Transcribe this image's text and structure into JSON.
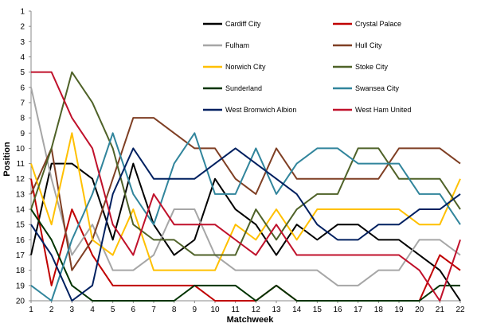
{
  "chart_data": {
    "type": "line",
    "title": "",
    "xlabel": "Matchweek",
    "ylabel": "Position",
    "x": [
      1,
      2,
      3,
      4,
      5,
      6,
      7,
      8,
      9,
      10,
      11,
      12,
      13,
      14,
      15,
      16,
      17,
      18,
      19,
      20,
      21,
      22
    ],
    "xlim": [
      1,
      22
    ],
    "ylim": [
      1,
      20
    ],
    "y_reversed": true,
    "y_ticks": [
      1,
      2,
      3,
      4,
      5,
      6,
      7,
      8,
      9,
      10,
      11,
      12,
      13,
      14,
      15,
      16,
      17,
      18,
      19,
      20
    ],
    "grid": false,
    "legend_position": "top-right",
    "series": [
      {
        "name": "Cardiff City",
        "color": "#000000",
        "values": [
          17,
          11,
          11,
          12,
          16,
          11,
          15,
          17,
          16,
          12,
          14,
          15,
          17,
          15,
          16,
          15,
          15,
          16,
          16,
          17,
          18,
          20
        ]
      },
      {
        "name": "Crystal Palace",
        "color": "#c00000",
        "values": [
          12,
          19,
          14,
          17,
          19,
          19,
          19,
          19,
          19,
          20,
          20,
          20,
          19,
          20,
          20,
          20,
          20,
          20,
          20,
          20,
          17,
          18
        ]
      },
      {
        "name": "Fulham",
        "color": "#a6a6a6",
        "values": [
          6,
          12,
          17,
          15,
          18,
          18,
          17,
          14,
          14,
          17,
          18,
          18,
          18,
          18,
          18,
          19,
          19,
          18,
          18,
          16,
          16,
          17
        ]
      },
      {
        "name": "Hull City",
        "color": "#7f3f24",
        "values": [
          13,
          10,
          18,
          16,
          12,
          8,
          8,
          9,
          10,
          10,
          12,
          13,
          10,
          12,
          12,
          12,
          12,
          12,
          10,
          10,
          10,
          11
        ]
      },
      {
        "name": "Norwich City",
        "color": "#ffc000",
        "values": [
          11,
          15,
          9,
          16,
          17,
          14,
          18,
          18,
          18,
          18,
          15,
          16,
          14,
          16,
          14,
          14,
          14,
          14,
          14,
          15,
          15,
          12
        ]
      },
      {
        "name": "Stoke City",
        "color": "#4f6228",
        "values": [
          14,
          10,
          5,
          7,
          10,
          15,
          16,
          16,
          17,
          17,
          17,
          14,
          16,
          14,
          13,
          13,
          10,
          10,
          12,
          12,
          12,
          14
        ]
      },
      {
        "name": "Sunderland",
        "color": "#003300",
        "values": [
          14,
          16,
          19,
          20,
          20,
          20,
          20,
          20,
          19,
          19,
          19,
          20,
          19,
          20,
          20,
          20,
          20,
          20,
          20,
          20,
          19,
          19
        ]
      },
      {
        "name": "Swansea City",
        "color": "#31859c",
        "values": [
          19,
          20,
          16,
          13,
          9,
          13,
          15,
          11,
          9,
          13,
          13,
          10,
          13,
          11,
          10,
          10,
          11,
          11,
          11,
          13,
          13,
          15
        ]
      },
      {
        "name": "West Bromwich Albion",
        "color": "#002060",
        "values": [
          15,
          17,
          20,
          19,
          13,
          10,
          12,
          12,
          12,
          11,
          10,
          11,
          12,
          13,
          15,
          16,
          16,
          15,
          15,
          14,
          14,
          13
        ]
      },
      {
        "name": "West Ham United",
        "color": "#c0112b",
        "values": [
          5,
          5,
          8,
          10,
          15,
          17,
          13,
          15,
          15,
          15,
          16,
          17,
          15,
          17,
          17,
          17,
          17,
          17,
          17,
          18,
          20,
          16
        ]
      }
    ]
  }
}
